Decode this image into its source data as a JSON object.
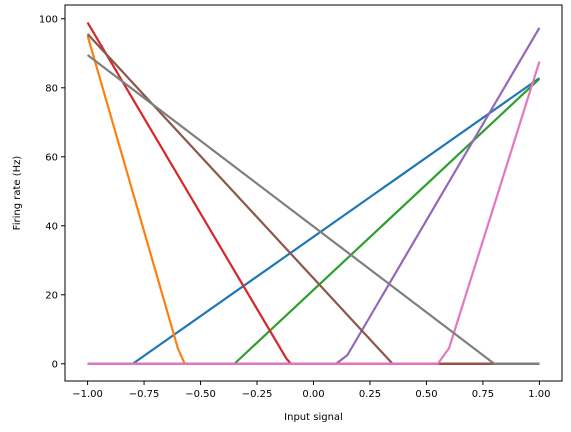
{
  "chart_data": {
    "type": "line",
    "title": "",
    "xlabel": "Input signal",
    "ylabel": "Firing rate (Hz)",
    "xlim": [
      -1.1,
      1.1
    ],
    "ylim": [
      -5,
      104
    ],
    "grid": false,
    "legend": "none",
    "x_ticks": [
      -1.0,
      -0.75,
      -0.5,
      -0.25,
      0.0,
      0.25,
      0.5,
      0.75,
      1.0
    ],
    "x_tick_labels": [
      "−1.00",
      "−0.75",
      "−0.50",
      "−0.25",
      "0.00",
      "0.25",
      "0.50",
      "0.75",
      "1.00"
    ],
    "y_ticks": [
      0,
      20,
      40,
      60,
      80,
      100
    ],
    "y_tick_labels": [
      "0",
      "20",
      "40",
      "60",
      "80",
      "100"
    ],
    "series": [
      {
        "color": "#1f77b4",
        "points": [
          [
            -1.0,
            0
          ],
          [
            -0.8,
            0
          ],
          [
            1.0,
            82.8
          ]
        ]
      },
      {
        "color": "#ff7f0e",
        "points": [
          [
            -1.0,
            95.1
          ],
          [
            -0.6,
            4.4
          ],
          [
            -0.57,
            0
          ],
          [
            1.0,
            0
          ]
        ]
      },
      {
        "color": "#2ca02c",
        "points": [
          [
            -1.0,
            0
          ],
          [
            -0.35,
            0
          ],
          [
            1.0,
            82.6
          ]
        ]
      },
      {
        "color": "#d62728",
        "points": [
          [
            -1.0,
            98.9
          ],
          [
            -0.12,
            1.5
          ],
          [
            -0.1,
            0
          ],
          [
            1.0,
            0
          ]
        ]
      },
      {
        "color": "#9467bd",
        "points": [
          [
            -1.0,
            0
          ],
          [
            0.1,
            0
          ],
          [
            0.15,
            2.5
          ],
          [
            1.0,
            97.4
          ]
        ]
      },
      {
        "color": "#8c564b",
        "points": [
          [
            -1.0,
            95.6
          ],
          [
            0.35,
            0
          ],
          [
            1.0,
            0
          ]
        ]
      },
      {
        "color": "#e377c2",
        "points": [
          [
            -1.0,
            0
          ],
          [
            0.55,
            0
          ],
          [
            0.6,
            4.5
          ],
          [
            1.0,
            87.6
          ]
        ]
      },
      {
        "color": "#7f7f7f",
        "points": [
          [
            -1.0,
            89.5
          ],
          [
            0.8,
            0
          ],
          [
            1.0,
            0
          ]
        ]
      }
    ]
  }
}
